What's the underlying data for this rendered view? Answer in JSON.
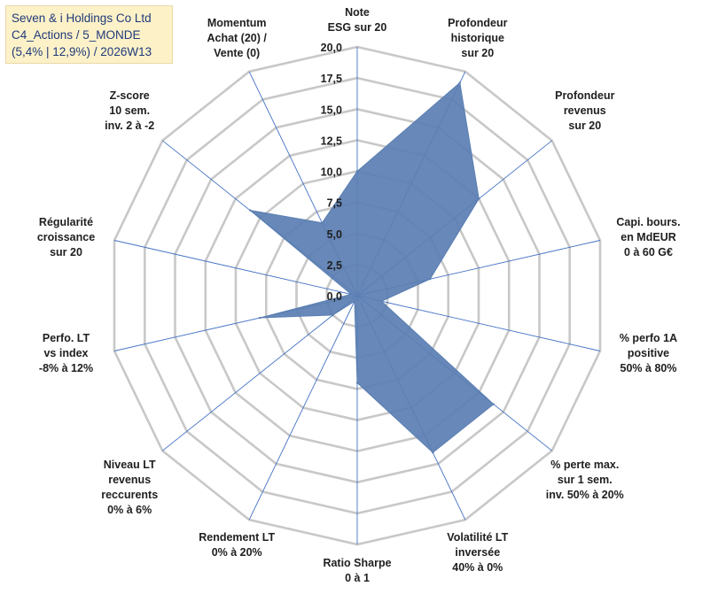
{
  "title_box": {
    "line1": "Seven & i Holdings Co Ltd",
    "line2": "C4_Actions / 5_MONDE",
    "line3": "(5,4% | 12,9%) / 2026W13"
  },
  "chart_data": {
    "type": "radar",
    "title": "Seven & i Holdings Co Ltd",
    "rmin": 0,
    "rmax": 20,
    "tick_step": 2.5,
    "tick_labels": [
      "0,0",
      "2,5",
      "5,0",
      "7,5",
      "10,0",
      "12,5",
      "15,0",
      "17,5",
      "20,0"
    ],
    "axes": [
      [
        "Note",
        "ESG sur 20"
      ],
      [
        "Profondeur",
        "historique",
        "sur 20"
      ],
      [
        "Profondeur",
        "revenus",
        "sur 20"
      ],
      [
        "Capi. bours.",
        "en MdEUR",
        "0 à 60 G€"
      ],
      [
        "% perfo 1A",
        "positive",
        "50% à 80%"
      ],
      [
        "% perte max.",
        "sur 1 sem.",
        "inv. 50% à 20%"
      ],
      [
        "Volatilité LT",
        "inversée",
        "40% à 0%"
      ],
      [
        "Ratio Sharpe",
        "0 à 1"
      ],
      [
        "Rendement LT",
        "0% à 20%"
      ],
      [
        "Niveau LT",
        "revenus",
        "reccurents",
        "0% à 6%"
      ],
      [
        "Perfo. LT",
        "vs index",
        "-8% à 12%"
      ],
      [
        "Régularité",
        "croissance",
        "sur 20"
      ],
      [
        "Z-score",
        "10 sem.",
        "inv. 2 à -2"
      ],
      [
        "Momentum",
        "Achat (20) /",
        "Vente (0)"
      ]
    ],
    "series": [
      {
        "name": "Seven & i Holdings Co Ltd",
        "color": "#5b7fb3",
        "values": [
          10,
          19,
          12.5,
          6,
          2,
          14,
          14,
          7,
          0.5,
          2.5,
          8,
          0.5,
          11,
          6.5
        ]
      }
    ]
  }
}
